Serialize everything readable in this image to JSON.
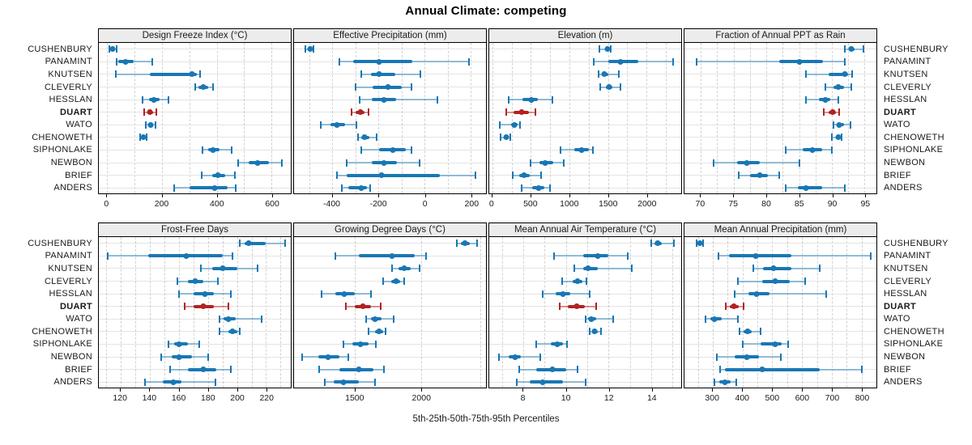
{
  "title": "Annual Climate: competing",
  "caption": "5th-25th-50th-75th-95th Percentiles",
  "colors": {
    "series": "#1977b4",
    "series_light": "rgba(25,119,180,0.45)",
    "highlight": "#b22222",
    "highlight_light": "rgba(178,34,34,0.45)",
    "strip_bg": "#ececec",
    "grid": "#d2d2d2",
    "guide": "#c9c9c9",
    "border": "#000000"
  },
  "chart_data": {
    "type": "dotplot-interval",
    "title": "Annual Climate: competing",
    "xlabel": "5th-25th-50th-75th-95th Percentiles",
    "legend_position": "none",
    "grid": true,
    "highlight_site": "DUART",
    "sites": [
      "CUSHENBURY",
      "PANAMINT",
      "KNUTSEN",
      "CLEVERLY",
      "HESSLAN",
      "DUART",
      "WATO",
      "CHENOWETH",
      "SIPHONLAKE",
      "NEWBON",
      "BRIEF",
      "ANDERS"
    ],
    "percentiles": [
      5,
      25,
      50,
      75,
      95
    ],
    "panels": [
      {
        "title": "Design Freeze Index (°C)",
        "xlim": [
          -30,
          670
        ],
        "ticks": [
          0,
          200,
          400,
          600
        ],
        "gridlines": [
          0,
          100,
          200,
          300,
          400,
          500,
          600
        ],
        "values": [
          [
            8,
            14,
            20,
            27,
            35
          ],
          [
            35,
            42,
            67,
            97,
            166
          ],
          [
            33,
            155,
            309,
            327,
            338
          ],
          [
            320,
            333,
            351,
            368,
            386
          ],
          [
            130,
            152,
            170,
            193,
            224
          ],
          [
            135,
            148,
            157,
            168,
            181
          ],
          [
            141,
            151,
            159,
            166,
            176
          ],
          [
            121,
            127,
            132,
            137,
            143
          ],
          [
            349,
            368,
            385,
            409,
            455
          ],
          [
            478,
            517,
            548,
            589,
            638
          ],
          [
            345,
            383,
            404,
            430,
            465
          ],
          [
            246,
            300,
            393,
            440,
            470
          ]
        ]
      },
      {
        "title": "Effective Precipitation (mm)",
        "xlim": [
          -565,
          265
        ],
        "ticks": [
          -400,
          -200,
          0,
          200
        ],
        "gridlines": [
          -500,
          -400,
          -300,
          -200,
          -100,
          0,
          100,
          200
        ],
        "values": [
          [
            -515,
            -505,
            -494,
            -486,
            -480
          ],
          [
            -368,
            -308,
            -196,
            -53,
            192
          ],
          [
            -276,
            -231,
            -196,
            -126,
            -17
          ],
          [
            -298,
            -225,
            -158,
            -98,
            -58
          ],
          [
            -280,
            -228,
            -178,
            -125,
            55
          ],
          [
            -318,
            -299,
            -279,
            -261,
            -242
          ],
          [
            -448,
            -408,
            -378,
            -345,
            -295
          ],
          [
            -290,
            -273,
            -259,
            -240,
            -207
          ],
          [
            -274,
            -198,
            -136,
            -82,
            -56
          ],
          [
            -336,
            -230,
            -176,
            -120,
            -22
          ],
          [
            -379,
            -336,
            -188,
            67,
            220
          ],
          [
            -360,
            -330,
            -276,
            -251,
            -236
          ]
        ]
      },
      {
        "title": "Elevation (m)",
        "xlim": [
          -40,
          2450
        ],
        "ticks": [
          0,
          500,
          1000,
          1500,
          2000
        ],
        "gridlines": [
          0,
          250,
          500,
          750,
          1000,
          1250,
          1500,
          1750,
          2000,
          2250
        ],
        "values": [
          [
            1390,
            1460,
            1498,
            1522,
            1538
          ],
          [
            1312,
            1500,
            1662,
            1890,
            2340
          ],
          [
            1378,
            1420,
            1452,
            1500,
            1640
          ],
          [
            1400,
            1478,
            1520,
            1560,
            1660
          ],
          [
            215,
            390,
            505,
            590,
            775
          ],
          [
            182,
            280,
            385,
            478,
            556
          ],
          [
            95,
            240,
            290,
            330,
            357
          ],
          [
            110,
            152,
            185,
            214,
            236
          ],
          [
            880,
            1060,
            1160,
            1248,
            1310
          ],
          [
            500,
            612,
            690,
            790,
            930
          ],
          [
            262,
            350,
            412,
            490,
            630
          ],
          [
            380,
            520,
            600,
            670,
            745
          ]
        ]
      },
      {
        "title": "Fraction of Annual PPT as Rain",
        "xlim": [
          67.5,
          96.8
        ],
        "ticks": [
          70,
          75,
          80,
          85,
          90,
          95
        ],
        "gridlines": [
          70,
          72.5,
          75,
          77.5,
          80,
          82.5,
          85,
          87.5,
          90,
          92.5,
          95
        ],
        "values": [
          [
            92,
            92.6,
            93,
            93.5,
            94.8
          ],
          [
            69.3,
            82,
            85,
            88.7,
            92
          ],
          [
            86,
            89.5,
            92,
            92.5,
            93.1
          ],
          [
            89,
            90.3,
            91,
            91.8,
            93
          ],
          [
            86,
            88,
            89,
            89.8,
            91
          ],
          [
            88.8,
            89.5,
            90.1,
            90.6,
            91.1
          ],
          [
            90.3,
            90.7,
            91.1,
            91.9,
            92.9
          ],
          [
            90,
            90.6,
            91,
            91.3,
            91.5
          ],
          [
            83,
            85.5,
            87,
            88.5,
            90
          ],
          [
            72,
            75.5,
            77,
            79,
            85
          ],
          [
            75.8,
            77.5,
            79,
            80.2,
            82
          ],
          [
            83,
            84.8,
            86,
            88.5,
            92
          ]
        ]
      },
      {
        "title": "Frost-Free Days",
        "xlim": [
          105,
          237
        ],
        "ticks": [
          120,
          140,
          160,
          180,
          200,
          220
        ],
        "gridlines": [
          110,
          120,
          130,
          140,
          150,
          160,
          170,
          180,
          190,
          200,
          210,
          220,
          230
        ],
        "values": [
          [
            202,
            205,
            208,
            220,
            233
          ],
          [
            111,
            139,
            165,
            190,
            197
          ],
          [
            175,
            183,
            190,
            200,
            214
          ],
          [
            159,
            166,
            171,
            177,
            187
          ],
          [
            160,
            170,
            178,
            184,
            196
          ],
          [
            164,
            170,
            177,
            184,
            194
          ],
          [
            188,
            191,
            194,
            199,
            217
          ],
          [
            188,
            194,
            197,
            200,
            202
          ],
          [
            153,
            157,
            160,
            166,
            174
          ],
          [
            148,
            155,
            160,
            169,
            180
          ],
          [
            154,
            166,
            177,
            186,
            196
          ],
          [
            137,
            149,
            156,
            162,
            185
          ]
        ]
      },
      {
        "title": "Growing Degree Days (°C)",
        "xlim": [
          1040,
          2490
        ],
        "ticks": [
          1500,
          2000
        ],
        "gridlines": [
          1500,
          2000,
          2450
        ],
        "values": [
          [
            2270,
            2302,
            2330,
            2368,
            2420
          ],
          [
            1350,
            1530,
            1780,
            1950,
            2040
          ],
          [
            1780,
            1832,
            1872,
            1920,
            1990
          ],
          [
            1712,
            1772,
            1812,
            1842,
            1872
          ],
          [
            1250,
            1352,
            1422,
            1500,
            1620
          ],
          [
            1432,
            1500,
            1560,
            1620,
            1692
          ],
          [
            1582,
            1622,
            1652,
            1700,
            1790
          ],
          [
            1600,
            1650,
            1680,
            1710,
            1732
          ],
          [
            1412,
            1480,
            1540,
            1600,
            1660
          ],
          [
            1100,
            1222,
            1300,
            1380,
            1452
          ],
          [
            1230,
            1380,
            1530,
            1640,
            1720
          ],
          [
            1270,
            1342,
            1412,
            1530,
            1650
          ]
        ]
      },
      {
        "title": "Mean Annual Air Temperature (°C)",
        "xlim": [
          6.4,
          15.4
        ],
        "ticks": [
          8,
          10,
          12,
          14
        ],
        "gridlines": [
          7,
          8,
          9,
          10,
          11,
          12,
          13,
          14,
          15
        ],
        "values": [
          [
            14.0,
            14.15,
            14.3,
            14.5,
            15.05
          ],
          [
            9.45,
            10.8,
            11.5,
            12.0,
            12.9
          ],
          [
            10.4,
            10.8,
            11.05,
            11.5,
            13.1
          ],
          [
            9.8,
            10.3,
            10.55,
            10.75,
            10.95
          ],
          [
            8.9,
            9.5,
            9.85,
            10.2,
            11.1
          ],
          [
            9.7,
            10.1,
            10.5,
            10.9,
            11.4
          ],
          [
            10.9,
            11.05,
            11.2,
            11.4,
            12.2
          ],
          [
            11.1,
            11.25,
            11.35,
            11.5,
            11.65
          ],
          [
            8.6,
            9.3,
            9.6,
            9.85,
            10.05
          ],
          [
            6.85,
            7.3,
            7.6,
            7.9,
            8.8
          ],
          [
            7.8,
            8.6,
            9.35,
            10.0,
            10.55
          ],
          [
            7.7,
            8.3,
            8.9,
            9.85,
            10.9
          ]
        ]
      },
      {
        "title": "Mean Annual Precipitation (mm)",
        "xlim": [
          205,
          850
        ],
        "ticks": [
          300,
          400,
          500,
          600,
          700,
          800
        ],
        "gridlines": [
          250,
          300,
          350,
          400,
          450,
          500,
          550,
          600,
          650,
          700,
          750,
          800
        ],
        "values": [
          [
            245,
            250,
            256,
            262,
            268
          ],
          [
            320,
            355,
            445,
            565,
            830
          ],
          [
            435,
            470,
            505,
            565,
            660
          ],
          [
            385,
            465,
            510,
            560,
            610
          ],
          [
            375,
            420,
            448,
            490,
            680
          ],
          [
            345,
            358,
            372,
            388,
            405
          ],
          [
            275,
            292,
            305,
            330,
            385
          ],
          [
            390,
            405,
            416,
            430,
            460
          ],
          [
            400,
            460,
            510,
            532,
            552
          ],
          [
            315,
            375,
            415,
            455,
            530
          ],
          [
            325,
            340,
            465,
            660,
            800
          ],
          [
            305,
            322,
            340,
            360,
            380
          ]
        ]
      }
    ]
  }
}
